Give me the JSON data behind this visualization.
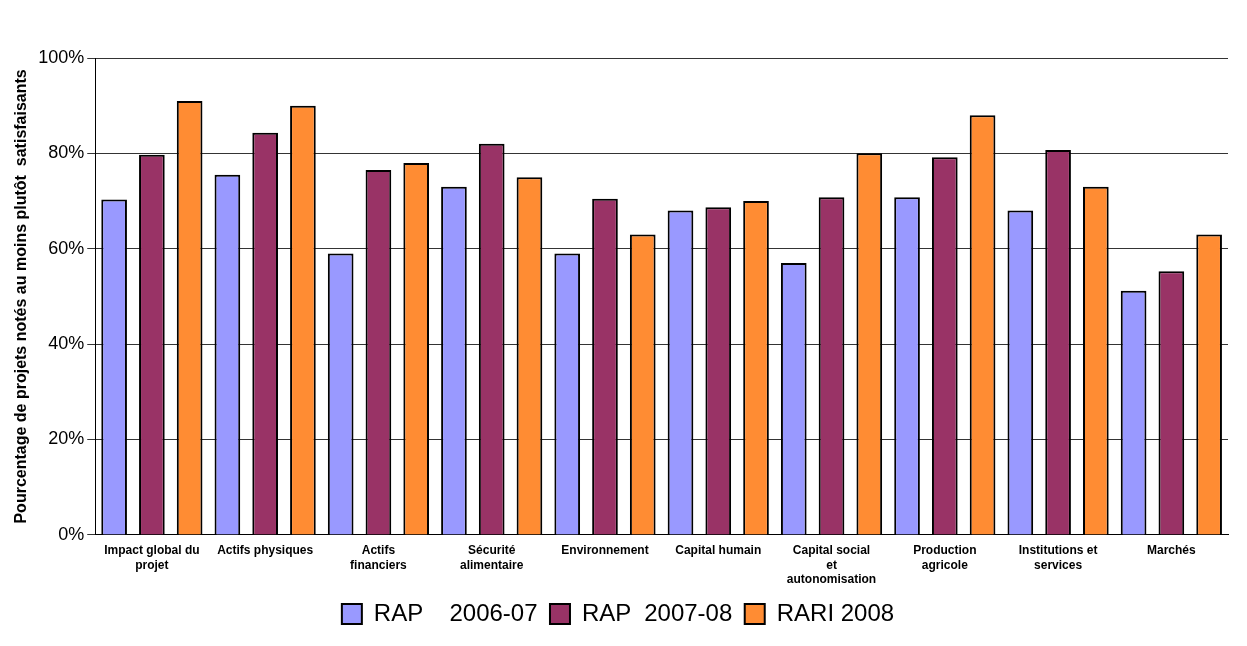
{
  "chart_data": {
    "type": "bar",
    "ylabel": "Pourcentage de projets notés au moins plutôt  satisfaisants",
    "categories": [
      "Impact global du projet",
      "Actifs physiques",
      "Actifs financiers",
      "Sécurité alimentaire",
      "Environnement",
      "Capital humain",
      "Capital social et autonomisation",
      "Production agricole",
      "Institutions et services",
      "Marchés"
    ],
    "series": [
      {
        "name": "RAP    2006-07",
        "color": "#9999ff",
        "values": [
          70.3,
          75.5,
          59,
          73,
          59,
          68,
          57,
          70.8,
          68,
          51.2
        ]
      },
      {
        "name": "RAP  2007-08",
        "color": "#993366",
        "values": [
          79.7,
          84.3,
          76.5,
          82,
          70.5,
          68.7,
          70.8,
          79.2,
          80.7,
          55.3
        ]
      },
      {
        "name": "RARI 2008",
        "color": "#ff8c33",
        "values": [
          91,
          90,
          78,
          75,
          63,
          70,
          80,
          88,
          73,
          63
        ]
      }
    ],
    "ylim": [
      0,
      100
    ],
    "yticks": [
      {
        "value": 0,
        "label": "0%"
      },
      {
        "value": 20,
        "label": "20%"
      },
      {
        "value": 40,
        "label": "40%"
      },
      {
        "value": 60,
        "label": "60%"
      },
      {
        "value": 80,
        "label": "80%"
      },
      {
        "value": 100,
        "label": "100%"
      }
    ],
    "grid": "y",
    "legend": "bottom"
  }
}
